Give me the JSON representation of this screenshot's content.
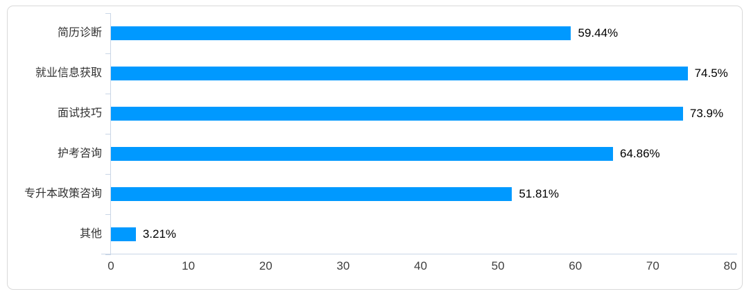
{
  "chart_data": {
    "type": "bar",
    "orientation": "horizontal",
    "title": "",
    "xlabel": "",
    "ylabel": "",
    "categories": [
      "简历诊断",
      "就业信息获取",
      "面试技巧",
      "护考咨询",
      "专升本政策咨询",
      "其他"
    ],
    "values": [
      59.44,
      74.5,
      73.9,
      64.86,
      51.81,
      3.21
    ],
    "value_labels": [
      "59.44%",
      "74.5%",
      "73.9%",
      "64.86%",
      "51.81%",
      "3.21%"
    ],
    "x_ticks": [
      "0",
      "10",
      "20",
      "30",
      "40",
      "50",
      "60",
      "70",
      "80"
    ],
    "xlim": [
      0,
      80
    ],
    "grid": false,
    "legend": false,
    "colors": {
      "bar": "#0099FF",
      "axis_line": "#C9D6E6",
      "card_border": "#D9D9D9",
      "category_label": "#333333",
      "value_label": "#000000",
      "tick_label": "#3F3F3F"
    }
  }
}
